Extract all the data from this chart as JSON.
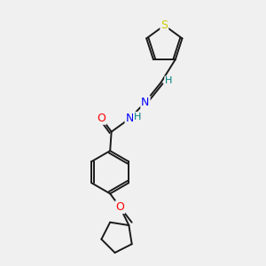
{
  "background_color": "#f0f0f0",
  "bond_color": "#1a1a1a",
  "atom_colors": {
    "S": "#cccc00",
    "O": "#ff0000",
    "N": "#0000ff",
    "H": "#008080",
    "C": "#1a1a1a"
  },
  "figsize": [
    3.0,
    3.0
  ],
  "dpi": 100
}
